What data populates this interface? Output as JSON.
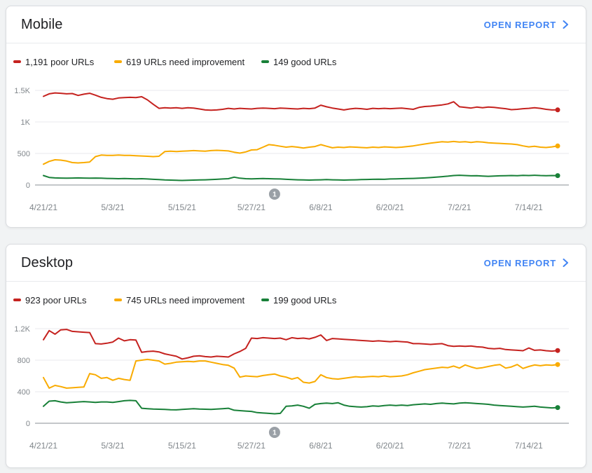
{
  "page": {
    "background": "#f1f3f4"
  },
  "colors": {
    "poor": "#c5221f",
    "need_improvement": "#f9ab00",
    "good": "#188038",
    "link_blue": "#4285f4",
    "axis_gray": "#80868b",
    "gridline": "#e8eaed",
    "zero_axis": "#8a8f94",
    "badge_gray": "#9aa0a6"
  },
  "cards": [
    {
      "title": "Mobile",
      "open_report": "OPEN REPORT"
    },
    {
      "title": "Desktop",
      "open_report": "OPEN REPORT"
    }
  ],
  "chart_data": [
    {
      "type": "line",
      "title": "Mobile",
      "legend_position": "top",
      "grid": "horizontal",
      "x_tick_labels": [
        "4/21/21",
        "5/3/21",
        "5/15/21",
        "5/27/21",
        "6/8/21",
        "6/20/21",
        "7/2/21",
        "7/14/21"
      ],
      "x_tick_indices": [
        0,
        12,
        24,
        36,
        48,
        60,
        72,
        84
      ],
      "y_ticks": [
        {
          "label": "1.5K",
          "value": 1500
        },
        {
          "label": "1K",
          "value": 1000
        },
        {
          "label": "500",
          "value": 500
        },
        {
          "label": "0",
          "value": 0
        }
      ],
      "ylim": [
        0,
        1700
      ],
      "annotation": {
        "label": "1",
        "x_index": 40
      },
      "series": [
        {
          "name": "poor URLs",
          "legend_label": "1,191 poor URLs",
          "latest": 1191,
          "color": "#c5221f",
          "values": [
            1405,
            1445,
            1460,
            1455,
            1445,
            1450,
            1420,
            1440,
            1455,
            1425,
            1390,
            1370,
            1360,
            1380,
            1385,
            1390,
            1385,
            1400,
            1350,
            1280,
            1215,
            1225,
            1220,
            1225,
            1215,
            1225,
            1220,
            1205,
            1190,
            1185,
            1190,
            1200,
            1215,
            1205,
            1215,
            1210,
            1205,
            1215,
            1220,
            1215,
            1210,
            1220,
            1215,
            1210,
            1205,
            1215,
            1210,
            1220,
            1265,
            1240,
            1220,
            1205,
            1190,
            1205,
            1215,
            1210,
            1200,
            1215,
            1210,
            1215,
            1210,
            1215,
            1220,
            1210,
            1200,
            1230,
            1245,
            1250,
            1260,
            1270,
            1285,
            1320,
            1240,
            1230,
            1220,
            1235,
            1225,
            1235,
            1230,
            1220,
            1210,
            1195,
            1200,
            1210,
            1215,
            1225,
            1215,
            1200,
            1190,
            1191
          ]
        },
        {
          "name": "URLs need improvement",
          "legend_label": "619 URLs need improvement",
          "latest": 619,
          "color": "#f9ab00",
          "values": [
            330,
            375,
            400,
            395,
            380,
            355,
            350,
            355,
            365,
            450,
            475,
            470,
            470,
            475,
            470,
            470,
            465,
            460,
            455,
            450,
            455,
            530,
            535,
            530,
            535,
            540,
            545,
            540,
            535,
            545,
            550,
            545,
            540,
            520,
            505,
            525,
            555,
            560,
            600,
            640,
            630,
            615,
            600,
            610,
            600,
            585,
            600,
            610,
            640,
            615,
            590,
            600,
            595,
            605,
            600,
            595,
            590,
            600,
            595,
            605,
            600,
            595,
            600,
            610,
            620,
            635,
            650,
            665,
            675,
            685,
            680,
            690,
            680,
            685,
            675,
            685,
            680,
            670,
            665,
            660,
            655,
            650,
            640,
            620,
            605,
            615,
            600,
            595,
            605,
            619
          ]
        },
        {
          "name": "good URLs",
          "legend_label": "149 good URLs",
          "latest": 149,
          "color": "#188038",
          "values": [
            150,
            120,
            112,
            110,
            108,
            110,
            112,
            110,
            108,
            110,
            108,
            105,
            102,
            100,
            102,
            100,
            98,
            100,
            95,
            90,
            85,
            80,
            78,
            75,
            72,
            75,
            78,
            80,
            82,
            85,
            90,
            95,
            100,
            125,
            108,
            100,
            98,
            100,
            102,
            100,
            98,
            95,
            90,
            85,
            82,
            80,
            78,
            80,
            82,
            85,
            82,
            80,
            78,
            80,
            82,
            85,
            88,
            90,
            92,
            90,
            95,
            98,
            100,
            102,
            105,
            108,
            112,
            118,
            125,
            132,
            140,
            150,
            155,
            150,
            145,
            148,
            142,
            138,
            142,
            145,
            148,
            150,
            148,
            152,
            150,
            155,
            150,
            148,
            150,
            149
          ]
        }
      ]
    },
    {
      "type": "line",
      "title": "Desktop",
      "legend_position": "top",
      "grid": "horizontal",
      "x_tick_labels": [
        "4/21/21",
        "5/3/21",
        "5/15/21",
        "5/27/21",
        "6/8/21",
        "6/20/21",
        "7/2/21",
        "7/14/21"
      ],
      "x_tick_indices": [
        0,
        12,
        24,
        36,
        48,
        60,
        72,
        84
      ],
      "y_ticks": [
        {
          "label": "1.2K",
          "value": 1200
        },
        {
          "label": "800",
          "value": 800
        },
        {
          "label": "400",
          "value": 400
        },
        {
          "label": "0",
          "value": 0
        }
      ],
      "ylim": [
        0,
        1360
      ],
      "annotation": {
        "label": "1",
        "x_index": 40
      },
      "series": [
        {
          "name": "poor URLs",
          "legend_label": "923 poor URLs",
          "latest": 923,
          "color": "#c5221f",
          "values": [
            1060,
            1175,
            1130,
            1185,
            1190,
            1165,
            1160,
            1155,
            1150,
            1010,
            1005,
            1015,
            1030,
            1080,
            1045,
            1060,
            1055,
            900,
            910,
            915,
            905,
            880,
            865,
            850,
            815,
            830,
            850,
            855,
            845,
            840,
            850,
            845,
            840,
            880,
            910,
            950,
            1080,
            1075,
            1085,
            1080,
            1075,
            1080,
            1060,
            1085,
            1075,
            1080,
            1070,
            1090,
            1120,
            1050,
            1075,
            1070,
            1065,
            1060,
            1055,
            1050,
            1045,
            1040,
            1045,
            1040,
            1035,
            1040,
            1035,
            1030,
            1010,
            1010,
            1005,
            1000,
            1005,
            1010,
            985,
            975,
            980,
            975,
            980,
            970,
            965,
            950,
            945,
            950,
            935,
            930,
            925,
            920,
            955,
            925,
            930,
            920,
            915,
            923
          ]
        },
        {
          "name": "URLs need improvement",
          "legend_label": "745 URLs need improvement",
          "latest": 745,
          "color": "#f9ab00",
          "values": [
            580,
            445,
            480,
            465,
            445,
            450,
            455,
            460,
            630,
            615,
            570,
            580,
            545,
            570,
            555,
            545,
            790,
            800,
            810,
            800,
            790,
            750,
            760,
            775,
            780,
            785,
            780,
            790,
            790,
            775,
            760,
            745,
            735,
            700,
            585,
            600,
            595,
            590,
            605,
            615,
            625,
            600,
            585,
            560,
            580,
            520,
            510,
            530,
            615,
            580,
            565,
            560,
            570,
            580,
            590,
            585,
            590,
            595,
            590,
            600,
            590,
            595,
            600,
            615,
            640,
            660,
            680,
            690,
            700,
            710,
            705,
            725,
            700,
            740,
            715,
            695,
            705,
            720,
            735,
            745,
            700,
            715,
            745,
            695,
            720,
            740,
            730,
            740,
            735,
            745
          ]
        },
        {
          "name": "good URLs",
          "legend_label": "199 good URLs",
          "latest": 199,
          "color": "#188038",
          "values": [
            215,
            280,
            285,
            270,
            260,
            265,
            270,
            275,
            270,
            265,
            270,
            270,
            265,
            275,
            285,
            290,
            285,
            190,
            185,
            180,
            178,
            175,
            172,
            170,
            175,
            180,
            185,
            180,
            178,
            175,
            180,
            185,
            190,
            165,
            160,
            155,
            150,
            135,
            130,
            125,
            120,
            125,
            215,
            220,
            230,
            215,
            190,
            240,
            250,
            255,
            250,
            260,
            230,
            215,
            210,
            205,
            210,
            220,
            215,
            225,
            230,
            225,
            230,
            225,
            235,
            240,
            245,
            240,
            250,
            255,
            250,
            245,
            255,
            260,
            255,
            250,
            245,
            240,
            230,
            225,
            220,
            215,
            210,
            205,
            210,
            215,
            205,
            200,
            195,
            199
          ]
        }
      ]
    }
  ]
}
